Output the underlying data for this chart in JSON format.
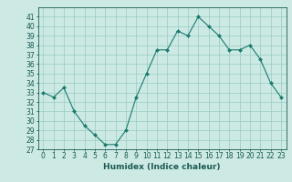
{
  "x": [
    0,
    1,
    2,
    3,
    4,
    5,
    6,
    7,
    8,
    9,
    10,
    11,
    12,
    13,
    14,
    15,
    16,
    17,
    18,
    19,
    20,
    21,
    22,
    23
  ],
  "y": [
    33.0,
    32.5,
    33.5,
    31.0,
    29.5,
    28.5,
    27.5,
    27.5,
    29.0,
    32.5,
    35.0,
    37.5,
    37.5,
    39.5,
    39.0,
    41.0,
    40.0,
    39.0,
    37.5,
    37.5,
    38.0,
    36.5,
    34.0,
    32.5
  ],
  "xlim": [
    -0.5,
    23.5
  ],
  "ylim": [
    27,
    42
  ],
  "yticks": [
    27,
    28,
    29,
    30,
    31,
    32,
    33,
    34,
    35,
    36,
    37,
    38,
    39,
    40,
    41
  ],
  "xtick_labels": [
    "0",
    "1",
    "2",
    "3",
    "4",
    "5",
    "6",
    "7",
    "8",
    "9",
    "10",
    "11",
    "12",
    "13",
    "14",
    "15",
    "16",
    "17",
    "18",
    "19",
    "20",
    "21",
    "22",
    "23"
  ],
  "xlabel": "Humidex (Indice chaleur)",
  "line_color": "#1a7a6e",
  "marker_color": "#1a7a6e",
  "bg_color": "#cce9e4",
  "grid_color": "#99ccc4",
  "font_color": "#1a5a50",
  "label_fontsize": 6.5,
  "tick_fontsize": 5.5
}
